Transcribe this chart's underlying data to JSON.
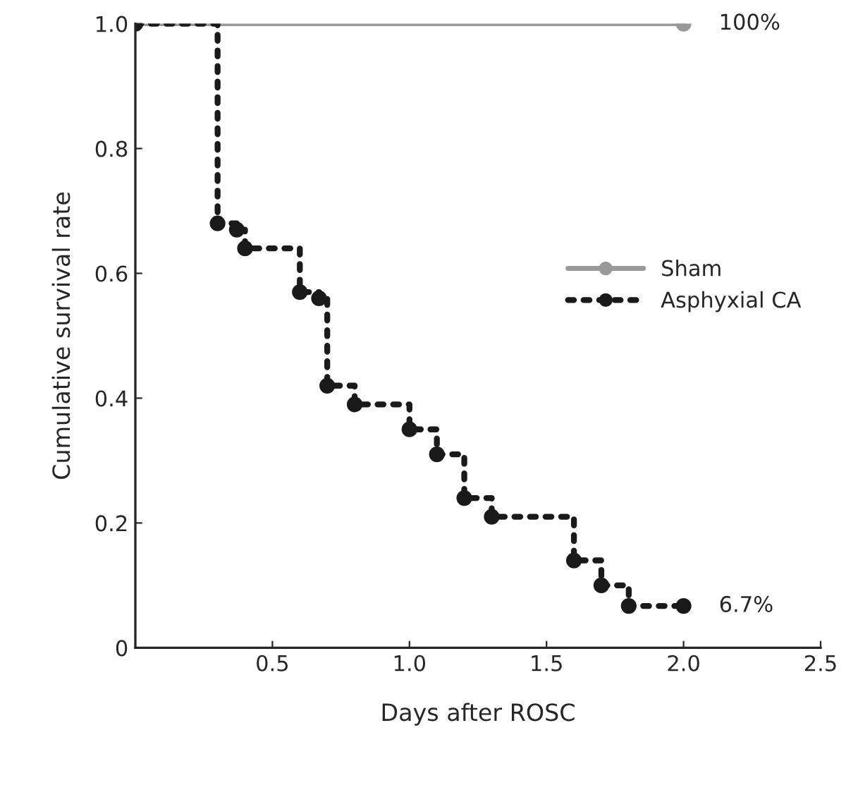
{
  "chart_data": {
    "type": "step",
    "xlabel": "Days after ROSC",
    "ylabel": "Cumulative survival rate",
    "xlim": [
      0,
      2.5
    ],
    "ylim": [
      0,
      1.0
    ],
    "xticks": [
      {
        "value": 0.5,
        "label": "0.5"
      },
      {
        "value": 1.0,
        "label": "1.0"
      },
      {
        "value": 1.5,
        "label": "1.5"
      },
      {
        "value": 2.0,
        "label": "2.0"
      },
      {
        "value": 2.5,
        "label": "2.5"
      }
    ],
    "yticks": [
      0,
      {
        "value": 0.2,
        "label": "0.2"
      },
      {
        "value": 0.4,
        "label": "0.4"
      },
      {
        "value": 0.6,
        "label": "0.6"
      },
      {
        "value": 0.8,
        "label": "0.8"
      },
      {
        "value": 1.0,
        "label": "1.0"
      }
    ],
    "series": [
      {
        "name": "Sham",
        "color": "#999999",
        "line_style": "solid",
        "marker": "circle",
        "x": [
          0,
          2.0
        ],
        "values": [
          1.0,
          1.0
        ]
      },
      {
        "name": "Asphyxial CA",
        "color": "#1a1a1a",
        "line_style": "dotted",
        "marker": "circle",
        "x": [
          0,
          0.3,
          0.37,
          0.4,
          0.6,
          0.67,
          0.7,
          0.8,
          1.0,
          1.1,
          1.2,
          1.3,
          1.6,
          1.7,
          1.8,
          2.0
        ],
        "values": [
          1.0,
          0.68,
          0.67,
          0.64,
          0.57,
          0.56,
          0.42,
          0.39,
          0.35,
          0.31,
          0.24,
          0.21,
          0.14,
          0.1,
          0.067,
          0.067
        ]
      }
    ],
    "annotations": [
      {
        "text": "100%",
        "x": 2.0,
        "y": 1.0
      },
      {
        "text": "6.7%",
        "x": 2.0,
        "y": 0.067
      }
    ],
    "legend": "right",
    "grid": false
  }
}
